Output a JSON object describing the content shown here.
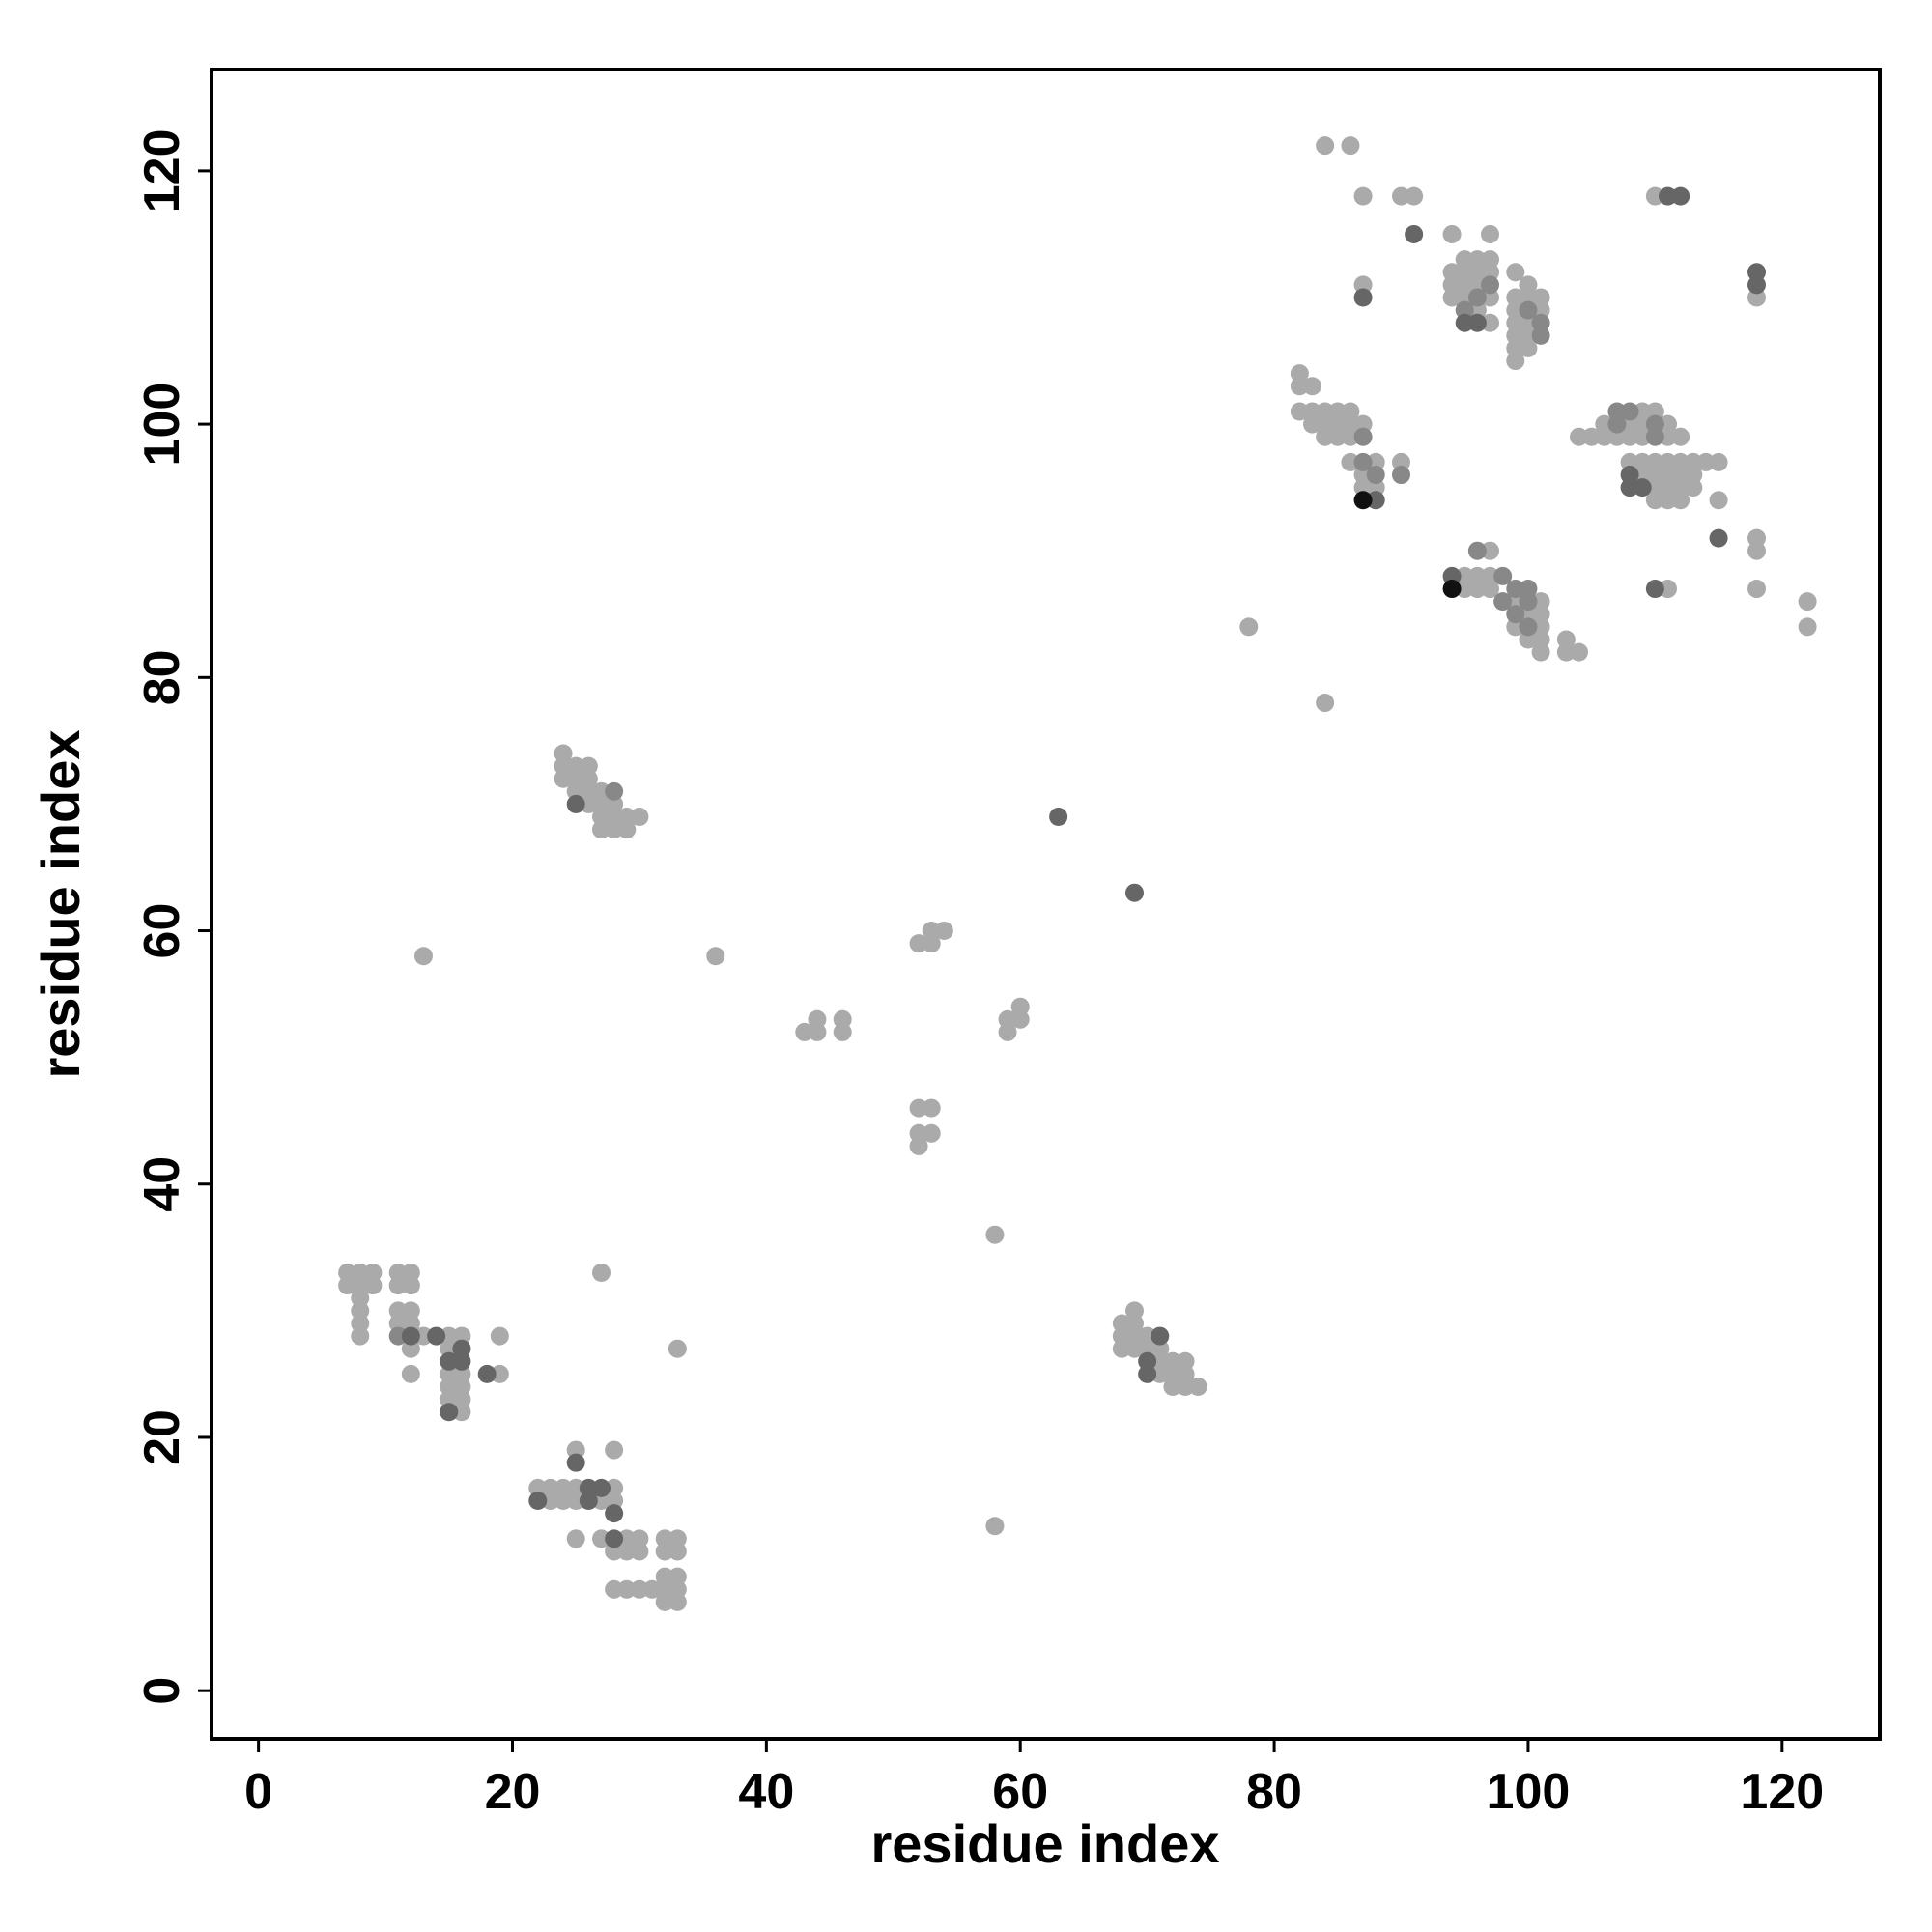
{
  "chart_data": {
    "type": "scatter",
    "xlabel": "residue index",
    "ylabel": "residue index",
    "xlim": [
      -3.7,
      127.7
    ],
    "ylim": [
      -3.8,
      128
    ],
    "xticks": [
      0,
      20,
      40,
      60,
      80,
      100,
      120
    ],
    "yticks": [
      0,
      20,
      40,
      60,
      80,
      100,
      120
    ],
    "series": [
      {
        "color": "#aaaaaa",
        "x": [
          7,
          8,
          9,
          7,
          8,
          9,
          8,
          8,
          8,
          8,
          11,
          12,
          11,
          12,
          11,
          12,
          11,
          12,
          13,
          12,
          12,
          15,
          16,
          15,
          15,
          16,
          15,
          16,
          15,
          16,
          16,
          19,
          19,
          13,
          27,
          33,
          25,
          28,
          22,
          23,
          24,
          25,
          28,
          23,
          24,
          25,
          27,
          28,
          25,
          27,
          29,
          30,
          28,
          29,
          30,
          32,
          33,
          32,
          33,
          32,
          33,
          28,
          29,
          30,
          31,
          32,
          33,
          32,
          33,
          58,
          58,
          24,
          24,
          25,
          26,
          24,
          25,
          26,
          25,
          26,
          27,
          26,
          27,
          28,
          27,
          28,
          29,
          30,
          27,
          28,
          29,
          36,
          43,
          44,
          44,
          46,
          46,
          52,
          53,
          53,
          54,
          52,
          53,
          52,
          53,
          52,
          59,
          60,
          60,
          59,
          69,
          68,
          69,
          68,
          69,
          70,
          68,
          69,
          70,
          71,
          71,
          72,
          73,
          71,
          72,
          73,
          72,
          73,
          74,
          84,
          86,
          87,
          90,
          91,
          87,
          94,
          97,
          95,
          96,
          97,
          94,
          95,
          96,
          97,
          94,
          95,
          96,
          94,
          95,
          97,
          96,
          97,
          99,
          100,
          99,
          100,
          101,
          99,
          101,
          99,
          100,
          99,
          100,
          99,
          100,
          99,
          110,
          118,
          82,
          82,
          83,
          82,
          83,
          84,
          85,
          86,
          83,
          84,
          85,
          86,
          87,
          84,
          85,
          86,
          86,
          88,
          90,
          87,
          87,
          88,
          78,
          84,
          104,
          105,
          106,
          106,
          109,
          110,
          108,
          109,
          111,
          107,
          108,
          109,
          111,
          112,
          108,
          109,
          110,
          111,
          112,
          113,
          114,
          115,
          109,
          110,
          111,
          112,
          113,
          110,
          111,
          112,
          113,
          110,
          111,
          112,
          115,
          118,
          118,
          118,
          111,
          122,
          122,
          97,
          95,
          96,
          97,
          95,
          96,
          97,
          99,
          101,
          100,
          101,
          99,
          101,
          100,
          101,
          101,
          103,
          103,
          104
        ],
        "y": [
          33,
          33,
          33,
          32,
          32,
          32,
          31,
          30,
          29,
          28,
          33,
          33,
          32,
          32,
          30,
          30,
          29,
          29,
          28,
          27,
          25,
          28,
          28,
          27,
          25,
          25,
          24,
          24,
          23,
          23,
          22,
          25,
          28,
          58,
          33,
          27,
          19,
          19,
          16,
          16,
          16,
          16,
          16,
          15,
          15,
          15,
          15,
          15,
          12,
          12,
          12,
          12,
          11,
          11,
          11,
          12,
          12,
          11,
          11,
          9,
          9,
          8,
          8,
          8,
          8,
          8,
          8,
          7,
          7,
          13,
          36,
          74,
          73,
          73,
          73,
          72,
          72,
          72,
          71,
          71,
          71,
          70,
          70,
          70,
          69,
          69,
          69,
          69,
          68,
          68,
          68,
          58,
          52,
          52,
          53,
          53,
          52,
          59,
          59,
          60,
          60,
          46,
          46,
          44,
          44,
          43,
          53,
          53,
          54,
          52,
          30,
          29,
          29,
          28,
          28,
          28,
          27,
          27,
          27,
          27,
          26,
          26,
          26,
          25,
          25,
          25,
          24,
          24,
          24,
          122,
          122,
          118,
          118,
          118,
          111,
          115,
          115,
          113,
          113,
          113,
          112,
          112,
          112,
          112,
          111,
          111,
          111,
          110,
          110,
          110,
          109,
          108,
          112,
          111,
          110,
          110,
          110,
          109,
          109,
          108,
          108,
          107,
          107,
          106,
          106,
          105,
          118,
          110,
          104,
          103,
          103,
          101,
          101,
          101,
          101,
          101,
          100,
          100,
          100,
          100,
          100,
          99,
          99,
          99,
          97,
          97,
          97,
          96,
          95,
          95,
          84,
          78,
          99,
          99,
          100,
          99,
          101,
          101,
          100,
          100,
          100,
          99,
          99,
          99,
          99,
          99,
          97,
          97,
          97,
          97,
          97,
          97,
          97,
          97,
          96,
          96,
          96,
          96,
          96,
          95,
          95,
          95,
          95,
          94,
          94,
          94,
          94,
          91,
          90,
          87,
          87,
          86,
          84,
          90,
          88,
          88,
          88,
          87,
          87,
          87,
          86,
          86,
          85,
          85,
          84,
          84,
          83,
          83,
          82,
          83,
          82,
          82
        ]
      },
      {
        "color": "#888888",
        "x": [
          11,
          28,
          97,
          96,
          95,
          100,
          101,
          101,
          87,
          87,
          88,
          90,
          107,
          108,
          107,
          110,
          110,
          96,
          98,
          98,
          99,
          100,
          100,
          99,
          100
        ],
        "y": [
          28,
          71,
          111,
          110,
          109,
          109,
          108,
          107,
          99,
          97,
          96,
          96,
          101,
          101,
          100,
          100,
          99,
          90,
          88,
          86,
          87,
          87,
          86,
          85,
          84
        ]
      },
      {
        "color": "#666666",
        "x": [
          12,
          14,
          16,
          15,
          16,
          15,
          18,
          25,
          26,
          27,
          22,
          26,
          28,
          28,
          25,
          63,
          69,
          71,
          70,
          70,
          91,
          87,
          95,
          96,
          111,
          112,
          118,
          118,
          88,
          108,
          108,
          109,
          94,
          115,
          110
        ],
        "y": [
          28,
          28,
          27,
          26,
          26,
          22,
          25,
          18,
          16,
          16,
          15,
          15,
          14,
          12,
          70,
          69,
          63,
          28,
          26,
          25,
          115,
          110,
          108,
          108,
          118,
          118,
          112,
          111,
          94,
          96,
          95,
          95,
          88,
          91,
          87
        ]
      },
      {
        "color": "#111111",
        "x": [
          87,
          94
        ],
        "y": [
          94,
          87
        ]
      }
    ]
  }
}
